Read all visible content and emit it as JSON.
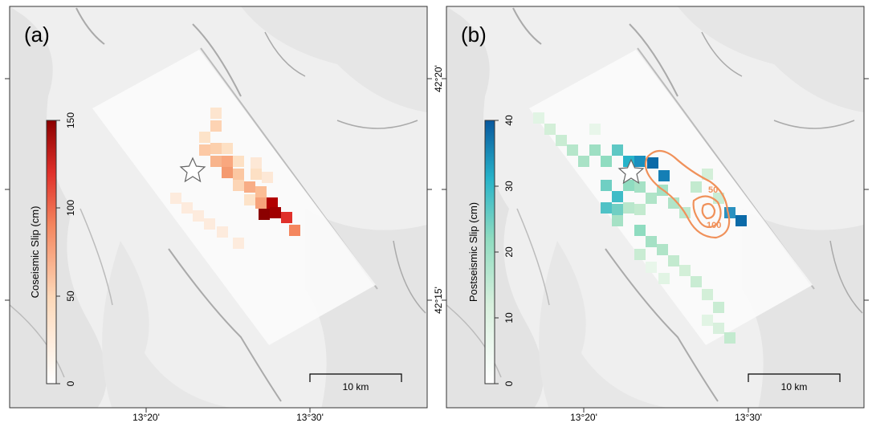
{
  "panels": [
    {
      "id": "a",
      "label": "(a)",
      "colorbar": {
        "title": "Coseismic Slip (cm)",
        "ticks": [
          "0",
          "50",
          "100",
          "150"
        ],
        "colors": [
          "#ffffff",
          "#fdd8b8",
          "#f4865e",
          "#e0302a",
          "#8b0000"
        ]
      },
      "scale_bar_label": "10 km",
      "x_ticks": [
        "13°20'",
        "13°30'"
      ],
      "y_ticks": []
    },
    {
      "id": "b",
      "label": "(b)",
      "colorbar": {
        "title": "Postseismic Slip (cm)",
        "ticks": [
          "0",
          "10",
          "20",
          "30",
          "40"
        ],
        "colors": [
          "#ffffff",
          "#d8f0dd",
          "#8fdcc0",
          "#26b3c9",
          "#08589e"
        ]
      },
      "contour_labels": [
        "50",
        "100"
      ],
      "scale_bar_label": "10 km",
      "x_ticks": [
        "13°20'",
        "13°30'"
      ],
      "y_ticks": [
        "42°20'",
        "42°15'"
      ]
    }
  ],
  "colors": {
    "coseismic_max": "#8b0000",
    "postseismic_max": "#08589e",
    "contour": "#f0915a",
    "star": "#ffffff"
  },
  "icons": [
    "epicenter-star-icon"
  ]
}
